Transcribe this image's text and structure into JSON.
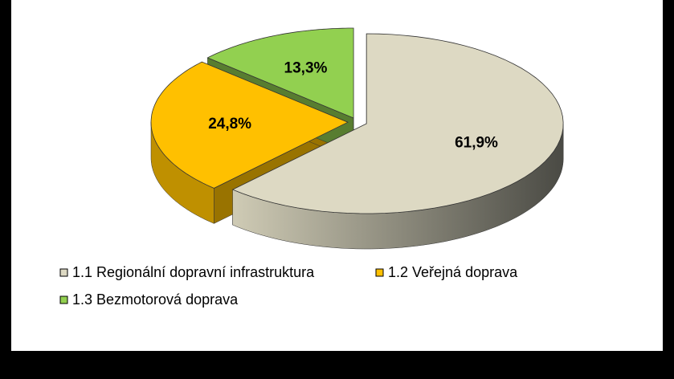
{
  "chart_data": {
    "type": "pie3d",
    "categories": [
      "1.1 Regionální dopravní infrastruktura",
      "1.2 Veřejná doprava",
      "1.3 Bezmotorová doprava"
    ],
    "values": [
      61.9,
      24.8,
      13.3
    ],
    "value_labels": [
      "61,9%",
      "24,8%",
      "13,3%"
    ],
    "colors": [
      "#ddd9c3",
      "#ffc000",
      "#92d050"
    ]
  }
}
